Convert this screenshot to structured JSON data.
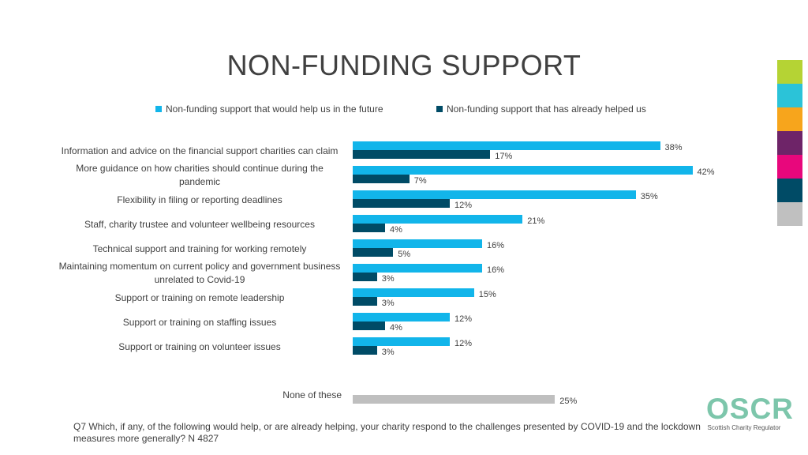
{
  "chart_data": {
    "type": "bar",
    "orientation": "horizontal",
    "title": "NON-FUNDING SUPPORT",
    "legend_position": "top",
    "categories": [
      "Information and advice on the financial support charities can claim",
      "More guidance on how charities should continue during the pandemic",
      "Flexibility in filing or reporting deadlines",
      "Staff, charity trustee and volunteer wellbeing resources",
      "Technical support and training for working remotely",
      "Maintaining momentum on current policy and government business unrelated to Covid-19",
      "Support or training on remote leadership",
      "Support or training on staffing issues",
      "Support or training on volunteer issues"
    ],
    "series": [
      {
        "name": "Non-funding support that would help us in the future",
        "color": "#12b5ea",
        "values": [
          38,
          42,
          35,
          21,
          16,
          16,
          15,
          12,
          12
        ]
      },
      {
        "name": "Non-funding support that has already helped us",
        "color": "#004b66",
        "values": [
          17,
          7,
          12,
          4,
          5,
          3,
          3,
          4,
          3
        ]
      }
    ],
    "extra": {
      "category": "None of these",
      "value": 25,
      "color": "#bfbfbf"
    },
    "value_suffix": "%",
    "grid": false
  },
  "footnote": "Q7 Which, if any, of the following would help, or are already helping, your charity respond to the challenges presented by COVID-19 and the lockdown measures more generally? N 4827",
  "color_stripes": [
    "#b5d334",
    "#2bc3d8",
    "#f7a51c",
    "#6e2468",
    "#e8077c",
    "#004b66",
    "#c0c0c0"
  ],
  "logo": {
    "text": "OSCR",
    "subtitle": "Scottish Charity Regulator",
    "color": "#7dc6ab"
  }
}
